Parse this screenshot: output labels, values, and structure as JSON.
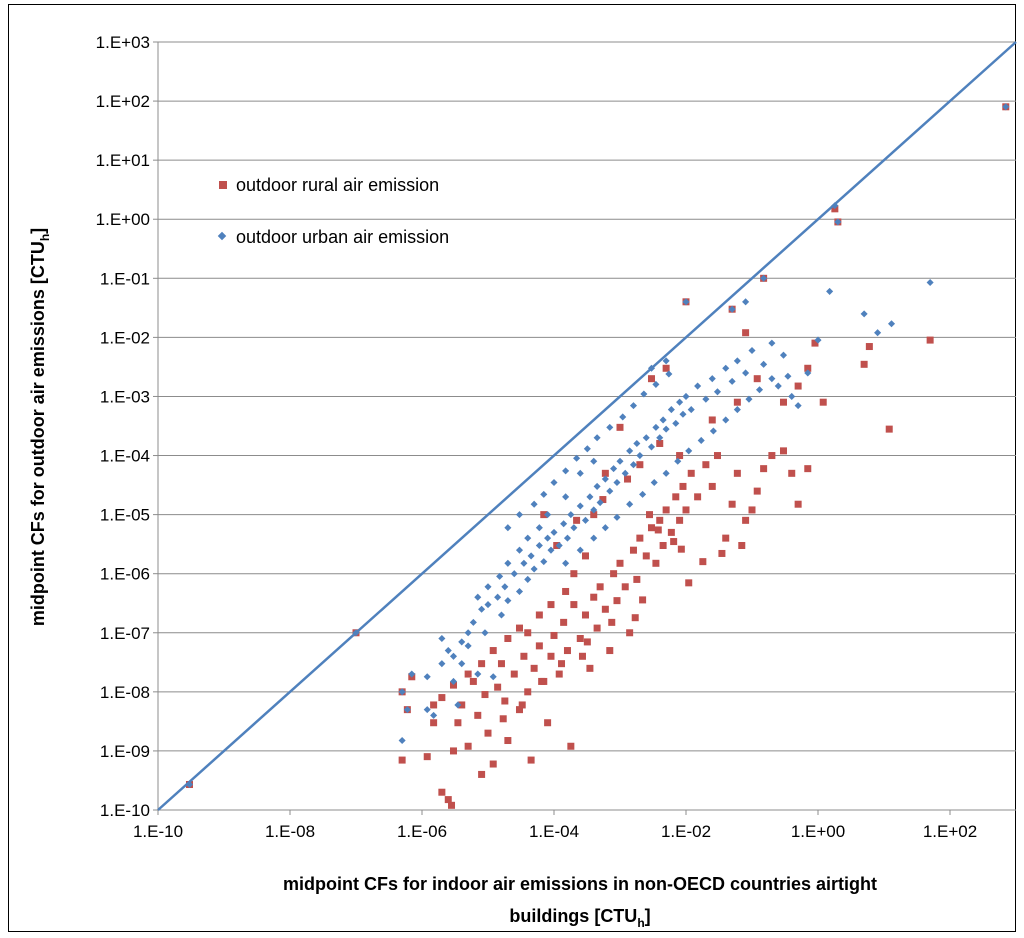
{
  "chart_data": {
    "type": "scatter",
    "x_scale": "log",
    "y_scale": "log",
    "xlim": [
      1e-10,
      1000
    ],
    "ylim": [
      1e-10,
      1000
    ],
    "x_ticks": [
      "1.E-10",
      "1.E-08",
      "1.E-06",
      "1.E-04",
      "1.E-02",
      "1.E+00",
      "1.E+02"
    ],
    "y_ticks": [
      "1.E+03",
      "1.E+02",
      "1.E+01",
      "1.E+00",
      "1.E-01",
      "1.E-02",
      "1.E-03",
      "1.E-04",
      "1.E-05",
      "1.E-06",
      "1.E-07",
      "1.E-08",
      "1.E-09",
      "1.E-10"
    ],
    "xlabel_line1": "midpoint CFs for indoor air emissions in non-OECD countries airtight",
    "xlabel_line2": "buildings [CTU",
    "xlabel_sub": "h",
    "xlabel_close": "]",
    "ylabel": "midpoint CFs for outdoor air emissions [CTU",
    "ylabel_sub": "h",
    "ylabel_close": "]",
    "grid": "horizontal",
    "legend_position": "top-left",
    "reference_line": {
      "type": "y=x",
      "color": "#4f81bd"
    },
    "series": [
      {
        "name": "outdoor rural air emission",
        "marker": "square",
        "color": "#c0504d",
        "points": [
          [
            3e-10,
            2.7e-10
          ],
          [
            1e-07,
            1e-07
          ],
          [
            5e-07,
            7e-10
          ],
          [
            5e-07,
            1e-08
          ],
          [
            6e-07,
            5e-09
          ],
          [
            7e-07,
            1.8e-08
          ],
          [
            1.2e-06,
            8e-10
          ],
          [
            1.5e-06,
            3e-09
          ],
          [
            2e-06,
            2e-10
          ],
          [
            2.5e-06,
            1.5e-10
          ],
          [
            2.8e-06,
            1.2e-10
          ],
          [
            3e-06,
            1e-09
          ],
          [
            3.5e-06,
            3e-09
          ],
          [
            4e-06,
            6e-09
          ],
          [
            5e-06,
            1.2e-09
          ],
          [
            6e-06,
            1.5e-08
          ],
          [
            7e-06,
            4e-09
          ],
          [
            8e-06,
            4e-10
          ],
          [
            9e-06,
            9e-09
          ],
          [
            1e-05,
            2e-09
          ],
          [
            1.2e-05,
            6e-10
          ],
          [
            1.4e-05,
            1.2e-08
          ],
          [
            1.6e-05,
            3e-08
          ],
          [
            1.8e-05,
            7e-09
          ],
          [
            2e-05,
            1.5e-09
          ],
          [
            2.5e-05,
            2e-08
          ],
          [
            3e-05,
            5e-09
          ],
          [
            3.5e-05,
            4e-08
          ],
          [
            4e-05,
            1e-08
          ],
          [
            4.5e-05,
            7e-10
          ],
          [
            5e-05,
            2.5e-08
          ],
          [
            6e-05,
            6e-08
          ],
          [
            7e-05,
            1.5e-08
          ],
          [
            8e-05,
            3e-09
          ],
          [
            9e-05,
            4e-08
          ],
          [
            0.0001,
            9e-08
          ],
          [
            0.00012,
            2e-08
          ],
          [
            0.00014,
            1.5e-07
          ],
          [
            0.00016,
            5e-08
          ],
          [
            0.00018,
            1.2e-09
          ],
          [
            0.0002,
            3e-07
          ],
          [
            0.00025,
            8e-08
          ],
          [
            0.0003,
            2e-07
          ],
          [
            0.00035,
            2.5e-08
          ],
          [
            0.0004,
            4e-07
          ],
          [
            0.00045,
            1.2e-07
          ],
          [
            0.0005,
            6e-07
          ],
          [
            0.0006,
            2.5e-07
          ],
          [
            0.0007,
            5e-08
          ],
          [
            0.0008,
            1e-06
          ],
          [
            0.0009,
            3.5e-07
          ],
          [
            0.001,
            1.5e-06
          ],
          [
            0.0012,
            6e-07
          ],
          [
            0.0014,
            1e-07
          ],
          [
            0.0016,
            2.5e-06
          ],
          [
            0.0018,
            8e-07
          ],
          [
            0.002,
            4e-06
          ],
          [
            0.0025,
            2e-06
          ],
          [
            0.003,
            6e-06
          ],
          [
            0.0035,
            1.5e-06
          ],
          [
            0.004,
            8e-06
          ],
          [
            0.0045,
            3e-06
          ],
          [
            0.005,
            1.2e-05
          ],
          [
            0.006,
            5e-06
          ],
          [
            0.007,
            2e-05
          ],
          [
            0.008,
            8e-06
          ],
          [
            0.009,
            3e-05
          ],
          [
            0.01,
            1.2e-05
          ],
          [
            0.012,
            5e-05
          ],
          [
            0.015,
            2e-05
          ],
          [
            0.02,
            7e-05
          ],
          [
            0.025,
            3e-05
          ],
          [
            0.03,
            0.0001
          ],
          [
            0.04,
            4e-06
          ],
          [
            0.05,
            1.5e-05
          ],
          [
            0.06,
            5e-05
          ],
          [
            0.07,
            3e-06
          ],
          [
            0.08,
            8e-06
          ],
          [
            0.1,
            1.2e-05
          ],
          [
            0.12,
            2.5e-05
          ],
          [
            0.15,
            6e-05
          ],
          [
            0.2,
            0.0001
          ],
          [
            0.3,
            0.00012
          ],
          [
            0.4,
            5e-05
          ],
          [
            0.5,
            1.5e-05
          ],
          [
            0.7,
            6e-05
          ],
          [
            1.2,
            0.0008
          ],
          [
            5,
            0.0035
          ],
          [
            6,
            0.007
          ],
          [
            12,
            0.00028
          ],
          [
            50,
            0.009
          ],
          [
            700,
            80
          ],
          [
            1.8,
            1.5
          ],
          [
            2,
            0.9
          ],
          [
            0.15,
            0.1
          ],
          [
            0.08,
            0.012
          ],
          [
            0.05,
            0.03
          ],
          [
            0.01,
            0.04
          ],
          [
            0.005,
            0.003
          ],
          [
            0.003,
            0.002
          ],
          [
            0.008,
            0.0001
          ],
          [
            0.002,
            7e-05
          ],
          [
            0.001,
            0.0003
          ],
          [
            0.0006,
            5e-05
          ],
          [
            0.0004,
            1e-05
          ],
          [
            0.0003,
            2e-06
          ],
          [
            0.0002,
            1e-06
          ],
          [
            0.00015,
            5e-07
          ],
          [
            9e-05,
            3e-07
          ],
          [
            6e-05,
            2e-07
          ],
          [
            4e-05,
            1e-07
          ],
          [
            3e-05,
            1.2e-07
          ],
          [
            2e-05,
            8e-08
          ],
          [
            1.2e-05,
            5e-08
          ],
          [
            8e-06,
            3e-08
          ],
          [
            5e-06,
            2e-08
          ],
          [
            3e-06,
            1.3e-08
          ],
          [
            2e-06,
            8e-09
          ],
          [
            1.5e-06,
            6e-09
          ],
          [
            0.004,
            0.00016
          ],
          [
            0.025,
            0.0004
          ],
          [
            0.06,
            0.0008
          ],
          [
            0.12,
            0.002
          ],
          [
            0.3,
            0.0008
          ],
          [
            0.5,
            0.0015
          ],
          [
            0.7,
            0.003
          ],
          [
            0.9,
            0.008
          ],
          [
            7e-05,
            1e-05
          ],
          [
            0.00011,
            3e-06
          ],
          [
            0.00022,
            8e-06
          ],
          [
            0.00055,
            1.8e-05
          ],
          [
            0.0013,
            4e-05
          ],
          [
            0.0028,
            1e-05
          ],
          [
            0.0038,
            5.5e-06
          ],
          [
            0.0065,
            3.5e-06
          ],
          [
            0.018,
            1.6e-06
          ],
          [
            0.035,
            2.2e-06
          ],
          [
            0.011,
            7e-07
          ],
          [
            0.0085,
            2.6e-06
          ],
          [
            0.0022,
            3.6e-07
          ],
          [
            0.0017,
            1.8e-07
          ],
          [
            0.00075,
            1.5e-07
          ],
          [
            0.00032,
            7e-08
          ],
          [
            0.00027,
            4e-08
          ],
          [
            0.00013,
            3e-08
          ],
          [
            6.5e-05,
            1.5e-08
          ],
          [
            3.3e-05,
            6e-09
          ],
          [
            1.7e-05,
            3.5e-09
          ]
        ]
      },
      {
        "name": "outdoor urban air emission",
        "marker": "diamond",
        "color": "#4f81bd",
        "points": [
          [
            3e-10,
            2.7e-10
          ],
          [
            1e-07,
            1e-07
          ],
          [
            5e-07,
            1.5e-09
          ],
          [
            5e-07,
            1e-08
          ],
          [
            6e-07,
            5e-09
          ],
          [
            7e-07,
            2e-08
          ],
          [
            1.2e-06,
            5e-09
          ],
          [
            1.5e-06,
            4e-09
          ],
          [
            2e-06,
            8e-08
          ],
          [
            2.5e-06,
            5e-08
          ],
          [
            3e-06,
            1.5e-08
          ],
          [
            3.5e-06,
            6e-09
          ],
          [
            4e-06,
            3e-08
          ],
          [
            5e-06,
            6e-08
          ],
          [
            6e-06,
            1.5e-07
          ],
          [
            7e-06,
            2e-08
          ],
          [
            8e-06,
            2.5e-07
          ],
          [
            9e-06,
            1e-07
          ],
          [
            1e-05,
            3e-07
          ],
          [
            1.2e-05,
            1.8e-08
          ],
          [
            1.4e-05,
            4e-07
          ],
          [
            1.6e-05,
            2e-07
          ],
          [
            1.8e-05,
            6e-07
          ],
          [
            2e-05,
            3.5e-07
          ],
          [
            2.5e-05,
            1e-06
          ],
          [
            3e-05,
            5e-07
          ],
          [
            3.5e-05,
            1.5e-06
          ],
          [
            4e-05,
            8e-07
          ],
          [
            4.5e-05,
            2e-06
          ],
          [
            5e-05,
            1.2e-06
          ],
          [
            6e-05,
            3e-06
          ],
          [
            7e-05,
            1.6e-06
          ],
          [
            8e-05,
            4e-06
          ],
          [
            9e-05,
            2.5e-06
          ],
          [
            0.0001,
            5e-06
          ],
          [
            0.00012,
            3e-06
          ],
          [
            0.00014,
            7e-06
          ],
          [
            0.00016,
            4e-06
          ],
          [
            0.00018,
            1e-05
          ],
          [
            0.0002,
            6e-06
          ],
          [
            0.00025,
            1.4e-05
          ],
          [
            0.0003,
            8e-06
          ],
          [
            0.00035,
            2e-05
          ],
          [
            0.0004,
            1.2e-05
          ],
          [
            0.00045,
            3e-05
          ],
          [
            0.0005,
            1.6e-05
          ],
          [
            0.0006,
            4e-05
          ],
          [
            0.0007,
            2.5e-05
          ],
          [
            0.0008,
            6e-05
          ],
          [
            0.0009,
            3.5e-05
          ],
          [
            0.001,
            8e-05
          ],
          [
            0.0012,
            5e-05
          ],
          [
            0.0014,
            0.00012
          ],
          [
            0.0016,
            7e-05
          ],
          [
            0.0018,
            0.00016
          ],
          [
            0.002,
            0.0001
          ],
          [
            0.0025,
            0.0002
          ],
          [
            0.003,
            0.00014
          ],
          [
            0.0035,
            0.0003
          ],
          [
            0.004,
            0.0002
          ],
          [
            0.0045,
            0.0004
          ],
          [
            0.005,
            0.00028
          ],
          [
            0.006,
            0.0006
          ],
          [
            0.007,
            0.00035
          ],
          [
            0.008,
            0.0008
          ],
          [
            0.009,
            0.0005
          ],
          [
            0.01,
            0.001
          ],
          [
            0.012,
            0.0006
          ],
          [
            0.015,
            0.0015
          ],
          [
            0.02,
            0.0009
          ],
          [
            0.025,
            0.002
          ],
          [
            0.03,
            0.0012
          ],
          [
            0.04,
            0.003
          ],
          [
            0.05,
            0.0018
          ],
          [
            0.06,
            0.004
          ],
          [
            0.08,
            0.0025
          ],
          [
            0.1,
            0.006
          ],
          [
            0.15,
            0.0035
          ],
          [
            0.2,
            0.008
          ],
          [
            0.3,
            0.005
          ],
          [
            0.4,
            0.001
          ],
          [
            0.5,
            0.0007
          ],
          [
            0.7,
            0.0025
          ],
          [
            1,
            0.009
          ],
          [
            1.5,
            0.06
          ],
          [
            5,
            0.025
          ],
          [
            8,
            0.012
          ],
          [
            13,
            0.017
          ],
          [
            50,
            0.085
          ],
          [
            700,
            80
          ],
          [
            1.8,
            1.7
          ],
          [
            2,
            0.9
          ],
          [
            0.15,
            0.1
          ],
          [
            0.08,
            0.04
          ],
          [
            0.05,
            0.03
          ],
          [
            0.01,
            0.04
          ],
          [
            0.005,
            0.004
          ],
          [
            0.003,
            0.003
          ],
          [
            0.0004,
            8e-05
          ],
          [
            0.00025,
            5e-05
          ],
          [
            0.00015,
            2e-05
          ],
          [
            8e-05,
            1e-05
          ],
          [
            6e-05,
            6e-06
          ],
          [
            4e-05,
            4e-06
          ],
          [
            3e-05,
            2.5e-06
          ],
          [
            2e-05,
            1.5e-06
          ],
          [
            1.5e-05,
            9e-07
          ],
          [
            1e-05,
            6e-07
          ],
          [
            7e-06,
            4e-07
          ],
          [
            5e-06,
            1e-07
          ],
          [
            4e-06,
            7e-08
          ],
          [
            3e-06,
            4e-08
          ],
          [
            2e-06,
            3e-08
          ],
          [
            1.2e-06,
            1.8e-08
          ],
          [
            2e-05,
            6e-06
          ],
          [
            3e-05,
            1e-05
          ],
          [
            5e-05,
            1.5e-05
          ],
          [
            7e-05,
            2.2e-05
          ],
          [
            0.0001,
            3.5e-05
          ],
          [
            0.00015,
            5.5e-05
          ],
          [
            0.00022,
            9e-05
          ],
          [
            0.00032,
            0.00013
          ],
          [
            0.00045,
            0.0002
          ],
          [
            0.0007,
            0.0003
          ],
          [
            0.0011,
            0.00045
          ],
          [
            0.0016,
            0.0007
          ],
          [
            0.0023,
            0.0011
          ],
          [
            0.0035,
            0.0016
          ],
          [
            0.0055,
            0.0024
          ],
          [
            0.00015,
            1.5e-06
          ],
          [
            0.00025,
            2.5e-06
          ],
          [
            0.0004,
            4e-06
          ],
          [
            0.0006,
            6e-06
          ],
          [
            0.0009,
            9e-06
          ],
          [
            0.0014,
            1.5e-05
          ],
          [
            0.0022,
            2.2e-05
          ],
          [
            0.0033,
            3.5e-05
          ],
          [
            0.005,
            5e-05
          ],
          [
            0.0075,
            8e-05
          ],
          [
            0.011,
            0.00012
          ],
          [
            0.017,
            0.00018
          ],
          [
            0.026,
            0.00026
          ],
          [
            0.04,
            0.0004
          ],
          [
            0.06,
            0.0006
          ],
          [
            0.09,
            0.0009
          ],
          [
            0.13,
            0.0013
          ],
          [
            0.2,
            0.002
          ],
          [
            0.25,
            0.0015
          ],
          [
            0.35,
            0.0022
          ]
        ]
      }
    ]
  }
}
